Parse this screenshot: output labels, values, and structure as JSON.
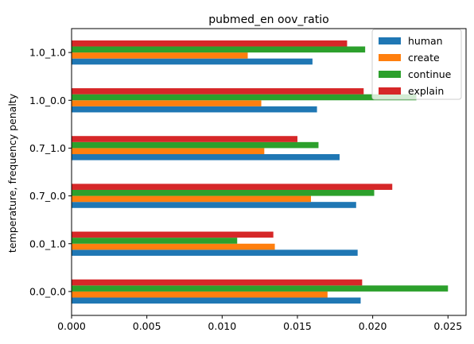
{
  "chart_data": {
    "type": "bar",
    "orientation": "horizontal",
    "title": "pubmed_en oov_ratio",
    "xlabel": "",
    "ylabel": "temperature, frequency penalty",
    "categories": [
      "0.0_0.0",
      "0.0_1.0",
      "0.7_0.0",
      "0.7_1.0",
      "1.0_0.0",
      "1.0_1.0"
    ],
    "series": [
      {
        "name": "human",
        "color": "#1f77b4",
        "values": [
          0.0192,
          0.019,
          0.0189,
          0.0178,
          0.0163,
          0.016
        ]
      },
      {
        "name": "create",
        "color": "#ff7f0e",
        "values": [
          0.017,
          0.0135,
          0.0159,
          0.0128,
          0.0126,
          0.0117
        ]
      },
      {
        "name": "continue",
        "color": "#2ca02c",
        "values": [
          0.025,
          0.011,
          0.0201,
          0.0164,
          0.0229,
          0.0195
        ]
      },
      {
        "name": "explain",
        "color": "#d62728",
        "values": [
          0.0193,
          0.0134,
          0.0213,
          0.015,
          0.0194,
          0.0183
        ]
      }
    ],
    "xlim": [
      0,
      0.0262
    ],
    "xticks": [
      "0.000",
      "0.005",
      "0.010",
      "0.015",
      "0.020",
      "0.025"
    ],
    "xtick_values": [
      0,
      0.005,
      0.01,
      0.015,
      0.02,
      0.025
    ],
    "grid": false,
    "legend_position": "upper right"
  }
}
